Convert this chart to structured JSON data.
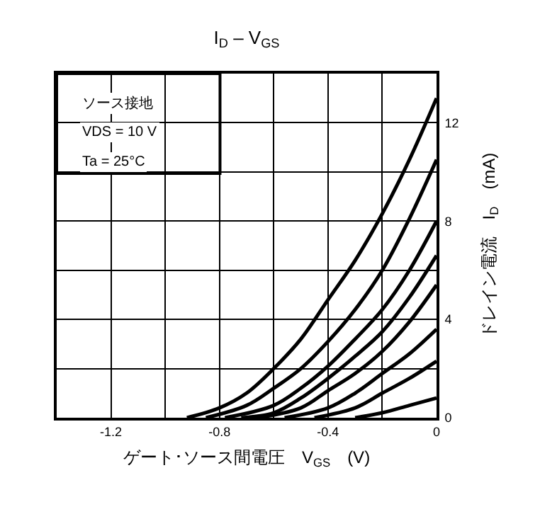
{
  "chart_data": {
    "type": "line",
    "title": "I$_{D}$ – V$_{GS}$",
    "xlabel": "ゲート･ソース間電圧　V$_{GS}$　(V)",
    "ylabel": "ドレイン電流　I$_{D}$　(mA)",
    "annotations": [
      "ソース接地",
      "VDS = 10 V",
      "Ta = 25°C"
    ],
    "xlim": [
      -1.4,
      0
    ],
    "ylim": [
      0,
      14
    ],
    "xticks": [
      {
        "value": -1.4,
        "label": null
      },
      -1.2,
      {
        "value": -1.0,
        "label": null
      },
      -0.8,
      {
        "value": -0.6,
        "label": null
      },
      -0.4,
      {
        "value": -0.2,
        "label": null
      },
      0
    ],
    "yticks": [
      0,
      {
        "value": 2,
        "label": null
      },
      4,
      {
        "value": 6,
        "label": null
      },
      8,
      {
        "value": 10,
        "label": null
      },
      12,
      {
        "value": 14,
        "label": null
      }
    ],
    "grid": true,
    "line_style": "solid",
    "marker": "none",
    "series": [
      {
        "color": "#000000",
        "x": [
          -0.92,
          -0.8,
          -0.7,
          -0.6,
          -0.5,
          -0.4,
          -0.3,
          -0.2,
          -0.1,
          0
        ],
        "values": [
          0,
          0.4,
          1.0,
          2.0,
          3.2,
          4.8,
          6.4,
          8.3,
          10.5,
          13.0
        ]
      },
      {
        "color": "#000000",
        "x": [
          -0.85,
          -0.7,
          -0.6,
          -0.5,
          -0.4,
          -0.3,
          -0.2,
          -0.1,
          0
        ],
        "values": [
          0,
          0.5,
          1.2,
          2.0,
          3.1,
          4.4,
          6.0,
          8.1,
          10.5
        ]
      },
      {
        "color": "#000000",
        "x": [
          -0.78,
          -0.6,
          -0.5,
          -0.4,
          -0.3,
          -0.2,
          -0.1,
          0
        ],
        "values": [
          0,
          0.5,
          1.2,
          2.1,
          3.2,
          4.4,
          6.0,
          8.0
        ]
      },
      {
        "color": "#000000",
        "x": [
          -0.72,
          -0.6,
          -0.5,
          -0.4,
          -0.3,
          -0.2,
          -0.1,
          0
        ],
        "values": [
          0,
          0.2,
          0.8,
          1.6,
          2.5,
          3.5,
          4.9,
          6.6
        ]
      },
      {
        "color": "#000000",
        "x": [
          -0.66,
          -0.5,
          -0.4,
          -0.3,
          -0.2,
          -0.1,
          0
        ],
        "values": [
          0,
          0.4,
          1.1,
          1.8,
          2.7,
          3.9,
          5.4
        ]
      },
      {
        "color": "#000000",
        "x": [
          -0.56,
          -0.4,
          -0.3,
          -0.2,
          -0.1,
          0
        ],
        "values": [
          0,
          0.4,
          1.0,
          1.8,
          2.6,
          3.6
        ]
      },
      {
        "color": "#000000",
        "x": [
          -0.45,
          -0.3,
          -0.2,
          -0.1,
          0
        ],
        "values": [
          0,
          0.4,
          1.0,
          1.6,
          2.3
        ]
      },
      {
        "color": "#000000",
        "x": [
          -0.3,
          -0.2,
          -0.1,
          0
        ],
        "values": [
          0,
          0.2,
          0.5,
          0.8
        ]
      }
    ]
  }
}
